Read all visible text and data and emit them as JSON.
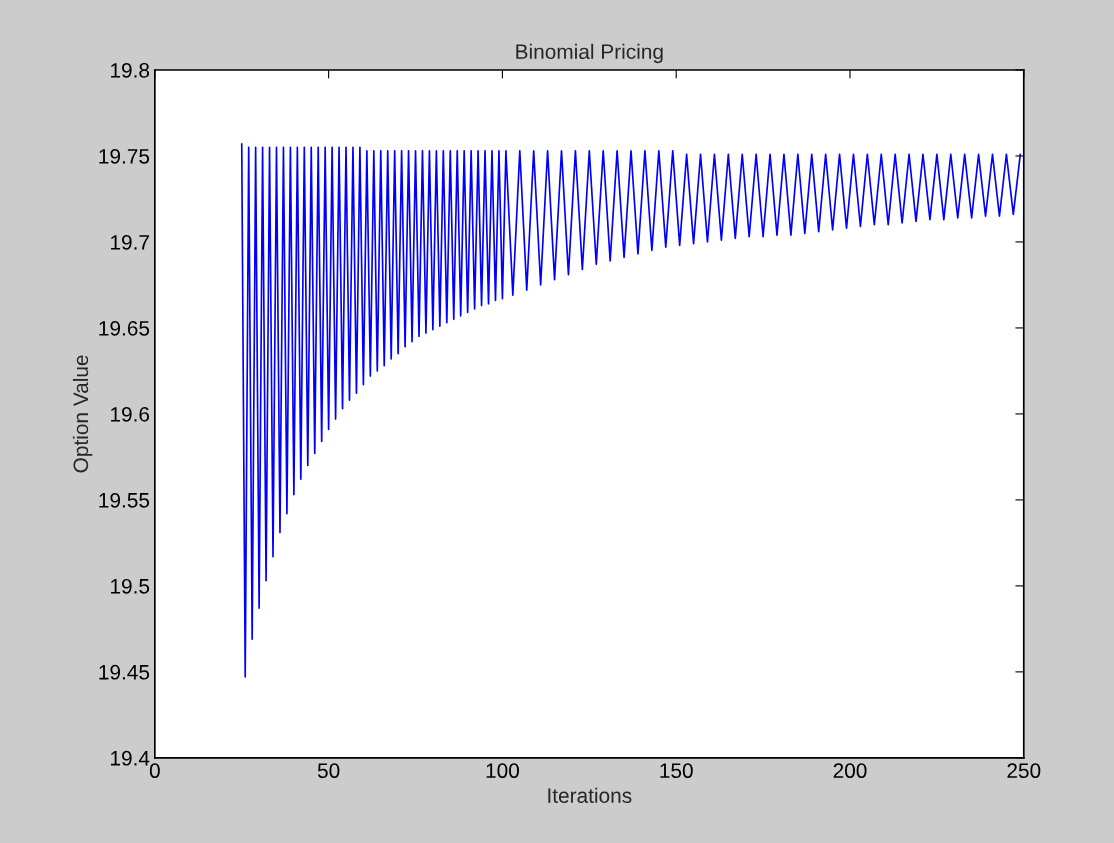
{
  "chart_data": {
    "type": "line",
    "title": "Binomial Pricing",
    "xlabel": "Iterations",
    "ylabel": "Option Value",
    "x": [
      25,
      26,
      27,
      28,
      29,
      30,
      31,
      32,
      33,
      34,
      35,
      36,
      37,
      38,
      39,
      40,
      41,
      42,
      43,
      44,
      45,
      46,
      47,
      48,
      49,
      50,
      51,
      52,
      53,
      54,
      55,
      56,
      57,
      58,
      59,
      60,
      61,
      62,
      63,
      64,
      65,
      66,
      67,
      68,
      69,
      70,
      71,
      72,
      73,
      74,
      75,
      76,
      77,
      78,
      79,
      80,
      81,
      82,
      83,
      84,
      85,
      86,
      87,
      88,
      89,
      90,
      91,
      92,
      93,
      94,
      95,
      96,
      97,
      98,
      99,
      100,
      101,
      103,
      105,
      107,
      109,
      111,
      113,
      115,
      117,
      119,
      121,
      123,
      125,
      127,
      129,
      131,
      133,
      135,
      137,
      139,
      141,
      143,
      145,
      147,
      149,
      151,
      153,
      155,
      157,
      159,
      161,
      163,
      165,
      167,
      169,
      171,
      173,
      175,
      177,
      179,
      181,
      183,
      185,
      187,
      189,
      191,
      193,
      195,
      197,
      199,
      201,
      203,
      205,
      207,
      209,
      211,
      213,
      215,
      217,
      219,
      221,
      223,
      225,
      227,
      229,
      231,
      233,
      235,
      237,
      239,
      241,
      243,
      245,
      247,
      249
    ],
    "series": [
      {
        "color": "#0000ff",
        "values": [
          19.757,
          19.447,
          19.755,
          19.469,
          19.755,
          19.487,
          19.755,
          19.503,
          19.755,
          19.517,
          19.755,
          19.531,
          19.755,
          19.542,
          19.755,
          19.553,
          19.755,
          19.562,
          19.755,
          19.57,
          19.755,
          19.577,
          19.755,
          19.584,
          19.755,
          19.591,
          19.755,
          19.597,
          19.755,
          19.603,
          19.755,
          19.608,
          19.755,
          19.612,
          19.755,
          19.617,
          19.753,
          19.622,
          19.753,
          19.625,
          19.753,
          19.628,
          19.753,
          19.632,
          19.753,
          19.635,
          19.753,
          19.639,
          19.753,
          19.642,
          19.753,
          19.645,
          19.753,
          19.647,
          19.753,
          19.649,
          19.753,
          19.651,
          19.753,
          19.653,
          19.753,
          19.655,
          19.753,
          19.657,
          19.753,
          19.659,
          19.753,
          19.661,
          19.753,
          19.663,
          19.753,
          19.664,
          19.753,
          19.666,
          19.753,
          19.667,
          19.753,
          19.669,
          19.753,
          19.672,
          19.753,
          19.675,
          19.753,
          19.678,
          19.753,
          19.681,
          19.753,
          19.684,
          19.753,
          19.687,
          19.753,
          19.689,
          19.753,
          19.691,
          19.753,
          19.693,
          19.753,
          19.695,
          19.753,
          19.697,
          19.753,
          19.698,
          19.751,
          19.699,
          19.751,
          19.7,
          19.751,
          19.701,
          19.751,
          19.702,
          19.751,
          19.703,
          19.751,
          19.703,
          19.751,
          19.704,
          19.751,
          19.704,
          19.751,
          19.705,
          19.751,
          19.706,
          19.751,
          19.707,
          19.751,
          19.708,
          19.751,
          19.709,
          19.751,
          19.71,
          19.751,
          19.71,
          19.751,
          19.711,
          19.751,
          19.712,
          19.751,
          19.713,
          19.751,
          19.713,
          19.751,
          19.714,
          19.751,
          19.714,
          19.751,
          19.715,
          19.751,
          19.715,
          19.751,
          19.716,
          19.751
        ]
      }
    ],
    "xlim": [
      0,
      250
    ],
    "xticks": [
      0,
      50,
      100,
      150,
      200,
      250
    ],
    "ylim": [
      19.4,
      19.8
    ],
    "yticks": [
      19.4,
      19.45,
      19.5,
      19.55,
      19.6,
      19.65,
      19.7,
      19.75,
      19.8
    ]
  }
}
